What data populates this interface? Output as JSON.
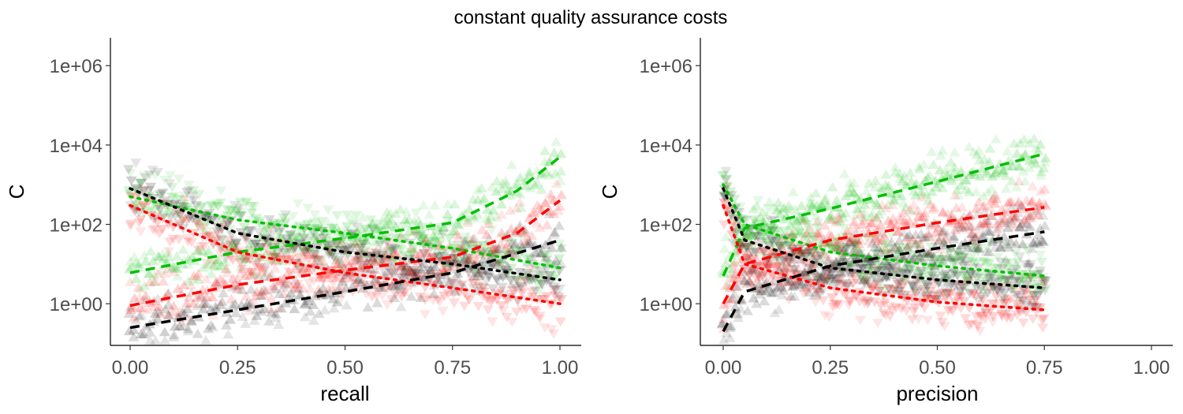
{
  "figure": {
    "title": "constant quality assurance costs"
  },
  "chart_data": [
    {
      "type": "scatter",
      "panel": "left",
      "xlabel": "recall",
      "ylabel": "C",
      "xlim": [
        0,
        1
      ],
      "ylim_log10": [
        -1.05,
        6.7
      ],
      "y_scale": "log10",
      "x_ticks": [
        0,
        0.25,
        0.5,
        0.75,
        1
      ],
      "x_tick_labels": [
        "0.00",
        "0.25",
        "0.50",
        "0.75",
        "1.00"
      ],
      "y_ticks": [
        1,
        100,
        10000,
        1000000
      ],
      "y_tick_labels": [
        "1e+00",
        "1e+02",
        "1e+04",
        "1e+06"
      ],
      "grid": false,
      "legend": "none",
      "series": [
        {
          "color": "#00bf00",
          "style": "dashed",
          "marker": "triangle-up",
          "x": [
            0,
            0.25,
            0.5,
            0.75,
            0.9,
            1
          ],
          "y": [
            6,
            20,
            45,
            110,
            700,
            5000
          ]
        },
        {
          "color": "#00bf00",
          "style": "dotted",
          "marker": "triangle-down",
          "x": [
            0,
            0.25,
            0.5,
            0.75,
            1
          ],
          "y": [
            500,
            130,
            60,
            25,
            8
          ]
        },
        {
          "color": "#ff0000",
          "style": "dashed",
          "marker": "triangle-up",
          "x": [
            0,
            0.25,
            0.5,
            0.75,
            0.9,
            1
          ],
          "y": [
            0.9,
            3,
            7,
            15,
            60,
            400
          ]
        },
        {
          "color": "#ff0000",
          "style": "dotted",
          "marker": "triangle-down",
          "x": [
            0,
            0.25,
            0.5,
            0.75,
            1
          ],
          "y": [
            300,
            20,
            6,
            2.5,
            1
          ]
        },
        {
          "color": "#000000",
          "style": "dashed",
          "marker": "triangle-up",
          "x": [
            0,
            0.25,
            0.5,
            0.75,
            1
          ],
          "y": [
            0.25,
            0.7,
            2,
            6,
            40
          ]
        },
        {
          "color": "#000000",
          "style": "dotted",
          "marker": "triangle-down",
          "x": [
            0,
            0.25,
            0.5,
            0.75,
            1
          ],
          "y": [
            800,
            60,
            20,
            10,
            4
          ]
        }
      ]
    },
    {
      "type": "scatter",
      "panel": "right",
      "xlabel": "precision",
      "ylabel": "C",
      "xlim": [
        0,
        1
      ],
      "ylim_log10": [
        -1.05,
        6.7
      ],
      "y_scale": "log10",
      "x_ticks": [
        0,
        0.25,
        0.5,
        0.75,
        1
      ],
      "x_tick_labels": [
        "0.00",
        "0.25",
        "0.50",
        "0.75",
        "1.00"
      ],
      "y_ticks": [
        1,
        100,
        10000,
        1000000
      ],
      "y_tick_labels": [
        "1e+00",
        "1e+02",
        "1e+04",
        "1e+06"
      ],
      "grid": false,
      "legend": "none",
      "series": [
        {
          "color": "#00bf00",
          "style": "dashed",
          "marker": "triangle-up",
          "x": [
            0,
            0.05,
            0.25,
            0.5,
            0.75
          ],
          "y": [
            5,
            80,
            250,
            1200,
            6000
          ]
        },
        {
          "color": "#00bf00",
          "style": "dotted",
          "marker": "triangle-down",
          "x": [
            0,
            0.05,
            0.25,
            0.5,
            0.75
          ],
          "y": [
            1000,
            100,
            20,
            9,
            5
          ]
        },
        {
          "color": "#ff0000",
          "style": "dashed",
          "marker": "triangle-up",
          "x": [
            0,
            0.05,
            0.25,
            0.5,
            0.75
          ],
          "y": [
            1,
            10,
            40,
            110,
            270
          ]
        },
        {
          "color": "#ff0000",
          "style": "dotted",
          "marker": "triangle-down",
          "x": [
            0,
            0.05,
            0.25,
            0.5,
            0.75
          ],
          "y": [
            300,
            10,
            2.5,
            1.1,
            0.7
          ]
        },
        {
          "color": "#000000",
          "style": "dashed",
          "marker": "triangle-up",
          "x": [
            0,
            0.05,
            0.25,
            0.5,
            0.75
          ],
          "y": [
            0.2,
            2,
            9,
            25,
            65
          ]
        },
        {
          "color": "#000000",
          "style": "dotted",
          "marker": "triangle-down",
          "x": [
            0,
            0.05,
            0.25,
            0.5,
            0.75
          ],
          "y": [
            800,
            40,
            8,
            4,
            2.5
          ]
        }
      ]
    }
  ]
}
